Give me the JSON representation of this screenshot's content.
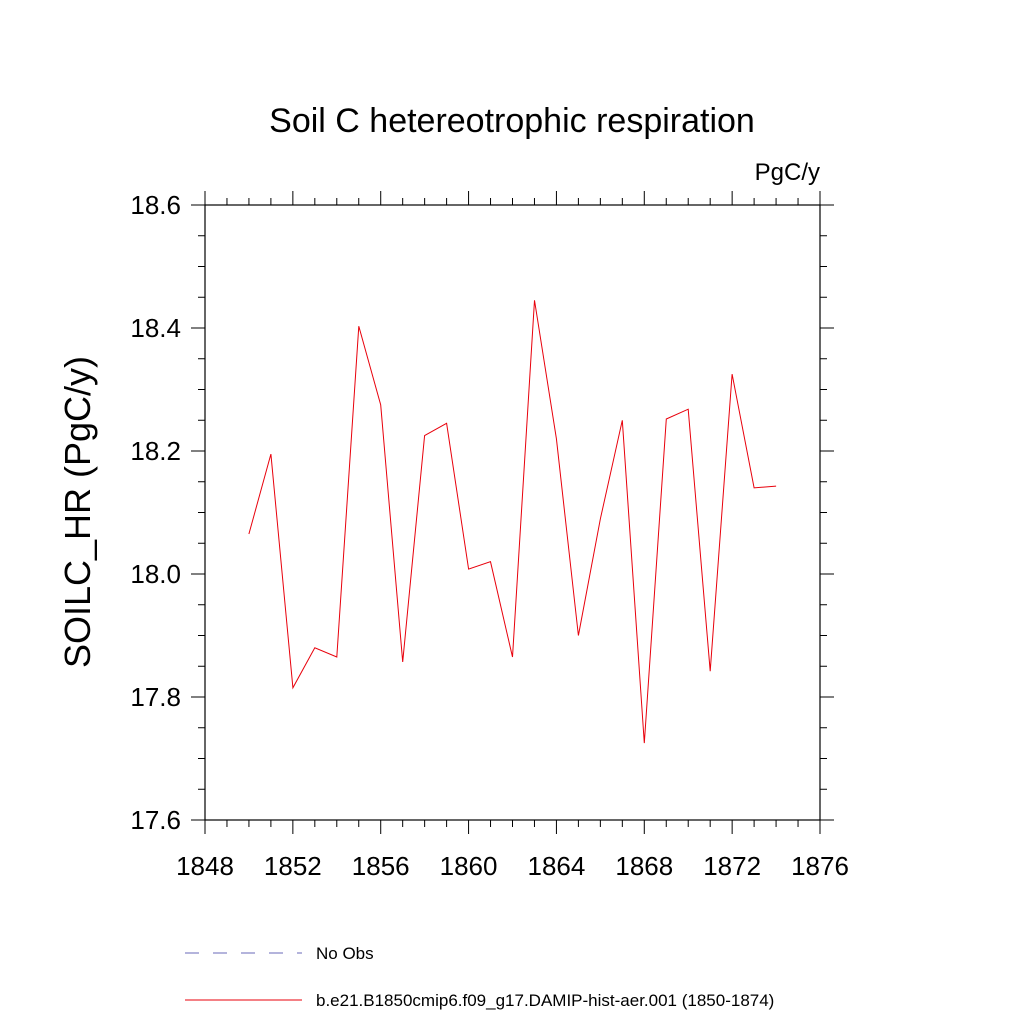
{
  "chart_data": {
    "type": "line",
    "title": "Soil C hetereotrophic respiration",
    "units_label": "PgC/y",
    "ylabel": "SOILC_HR  (PgC/y)",
    "xlabel": "",
    "xlim": [
      1848,
      1876
    ],
    "ylim": [
      17.6,
      18.6
    ],
    "x_ticks": [
      1848,
      1852,
      1856,
      1860,
      1864,
      1868,
      1872,
      1876
    ],
    "x_tick_labels": [
      "1848",
      "1852",
      "1856",
      "1860",
      "1864",
      "1868",
      "1872",
      "1876"
    ],
    "y_ticks": [
      17.6,
      17.8,
      18.0,
      18.2,
      18.4,
      18.6
    ],
    "y_tick_labels": [
      "17.6",
      "17.8",
      "18.0",
      "18.2",
      "18.4",
      "18.6"
    ],
    "grid": false,
    "legend_position": "bottom",
    "series": [
      {
        "name": "b.e21.B1850cmip6.f09_g17.DAMIP-hist-aer.001 (1850-1874)",
        "color": "#e8000b",
        "x": [
          1850,
          1851,
          1852,
          1853,
          1854,
          1855,
          1856,
          1857,
          1858,
          1859,
          1860,
          1861,
          1862,
          1863,
          1864,
          1865,
          1866,
          1867,
          1868,
          1869,
          1870,
          1871,
          1872,
          1873,
          1874
        ],
        "values": [
          18.065,
          18.195,
          17.815,
          17.88,
          17.865,
          18.403,
          18.275,
          17.857,
          18.225,
          18.245,
          18.008,
          18.02,
          17.865,
          18.445,
          18.22,
          17.9,
          18.09,
          18.25,
          17.725,
          18.252,
          18.268,
          17.842,
          18.325,
          18.14,
          18.143
        ]
      }
    ],
    "legend": [
      {
        "label": "No Obs",
        "color": "#6a6ab8",
        "dash": true
      },
      {
        "label": "b.e21.B1850cmip6.f09_g17.DAMIP-hist-aer.001 (1850-1874)",
        "color": "#e8000b",
        "dash": false
      }
    ]
  }
}
